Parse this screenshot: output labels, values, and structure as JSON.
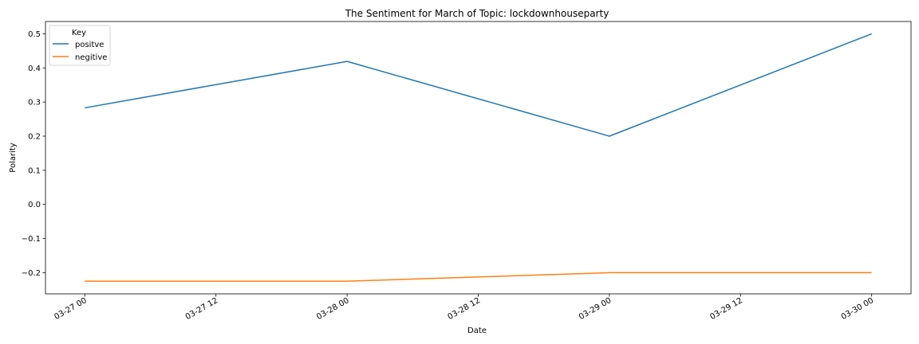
{
  "chart_data": {
    "type": "line",
    "title": "The Sentiment for March of Topic: lockdownhouseparty",
    "xlabel": "Date",
    "ylabel": "Polarity",
    "x": [
      "03-27 00",
      "03-28 00",
      "03-29 00",
      "03-30 00"
    ],
    "x_hours": [
      0,
      24,
      48,
      72
    ],
    "xticks": [
      {
        "label": "03-27 00",
        "hour": 0
      },
      {
        "label": "03-27 12",
        "hour": 12
      },
      {
        "label": "03-28 00",
        "hour": 24
      },
      {
        "label": "03-28 12",
        "hour": 36
      },
      {
        "label": "03-29 00",
        "hour": 48
      },
      {
        "label": "03-29 12",
        "hour": 60
      },
      {
        "label": "03-30 00",
        "hour": 72
      }
    ],
    "xlim_hours": [
      -3.6,
      75.6
    ],
    "yticks": [
      {
        "label": "0.5",
        "value": 0.5
      },
      {
        "label": "0.4",
        "value": 0.4
      },
      {
        "label": "0.3",
        "value": 0.3
      },
      {
        "label": "0.2",
        "value": 0.2
      },
      {
        "label": "0.1",
        "value": 0.1
      },
      {
        "label": "0.0",
        "value": 0.0
      },
      {
        "label": "−0.1",
        "value": -0.1
      },
      {
        "label": "−0.2",
        "value": -0.2
      }
    ],
    "ylim": [
      -0.262,
      0.536
    ],
    "grid": false,
    "legend": {
      "title": "Key",
      "placement": "top-left"
    },
    "series": [
      {
        "name": "positve",
        "color": "#1f77b4",
        "values": [
          0.283,
          0.419,
          0.2,
          0.5
        ]
      },
      {
        "name": "negitive",
        "color": "#ff7f0e",
        "values": [
          -0.225,
          -0.225,
          -0.2,
          -0.2
        ]
      }
    ]
  }
}
